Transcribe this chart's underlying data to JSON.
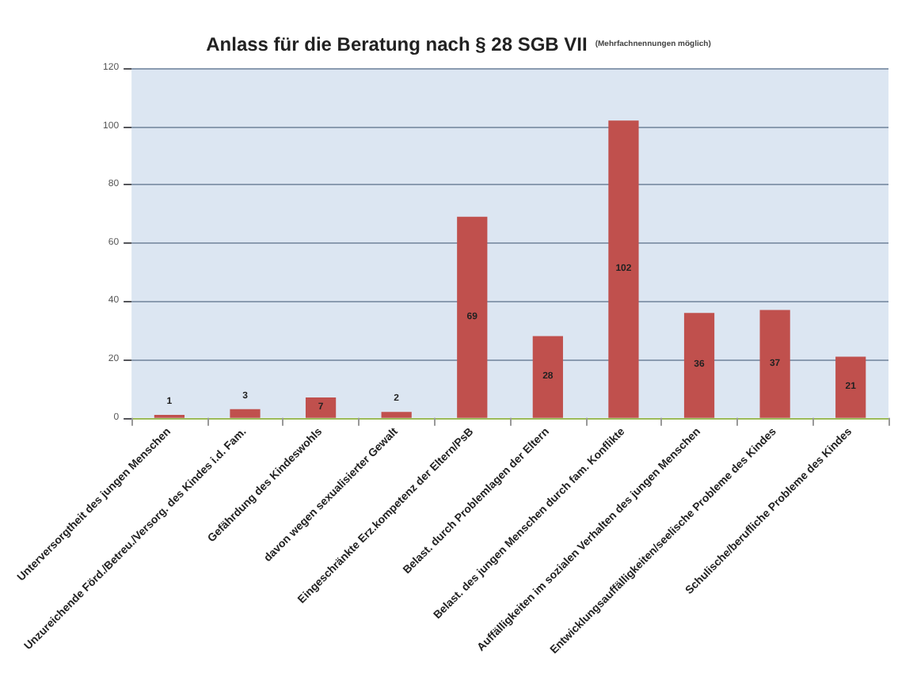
{
  "chart_data": {
    "type": "bar",
    "title": "Anlass für die Beratung nach § 28 SGB VII",
    "subtitle": "(Mehrfachnennungen möglich)",
    "categories": [
      "Unterversorgtheit des jungen Menschen",
      "Unzureichende Förd./Betreu./Versorg. des Kindes i.d. Fam.",
      "Gefährdung des Kindeswohls",
      "davon wegen sexualisierter Gewalt",
      "Eingeschränkte Erz.kompetenz der Eltern/PsB",
      "Belast. durch Problemlagen der Eltern",
      "Belast. des jungen Menschen durch fam. Konflikte",
      "Auffälligkeiten im sozialen Verhalten des jungen Menschen",
      "Entwicklungsauffälligkeiten/seelische Probleme des Kindes",
      "Schulische/berufliche Probleme des Kindes"
    ],
    "values": [
      1,
      3,
      7,
      2,
      69,
      28,
      102,
      36,
      37,
      21
    ],
    "color": "#c0504d",
    "ylim": [
      0,
      120
    ],
    "yticks": [
      0,
      20,
      40,
      60,
      80,
      100,
      120
    ],
    "grid": "y",
    "data_labels": true
  }
}
